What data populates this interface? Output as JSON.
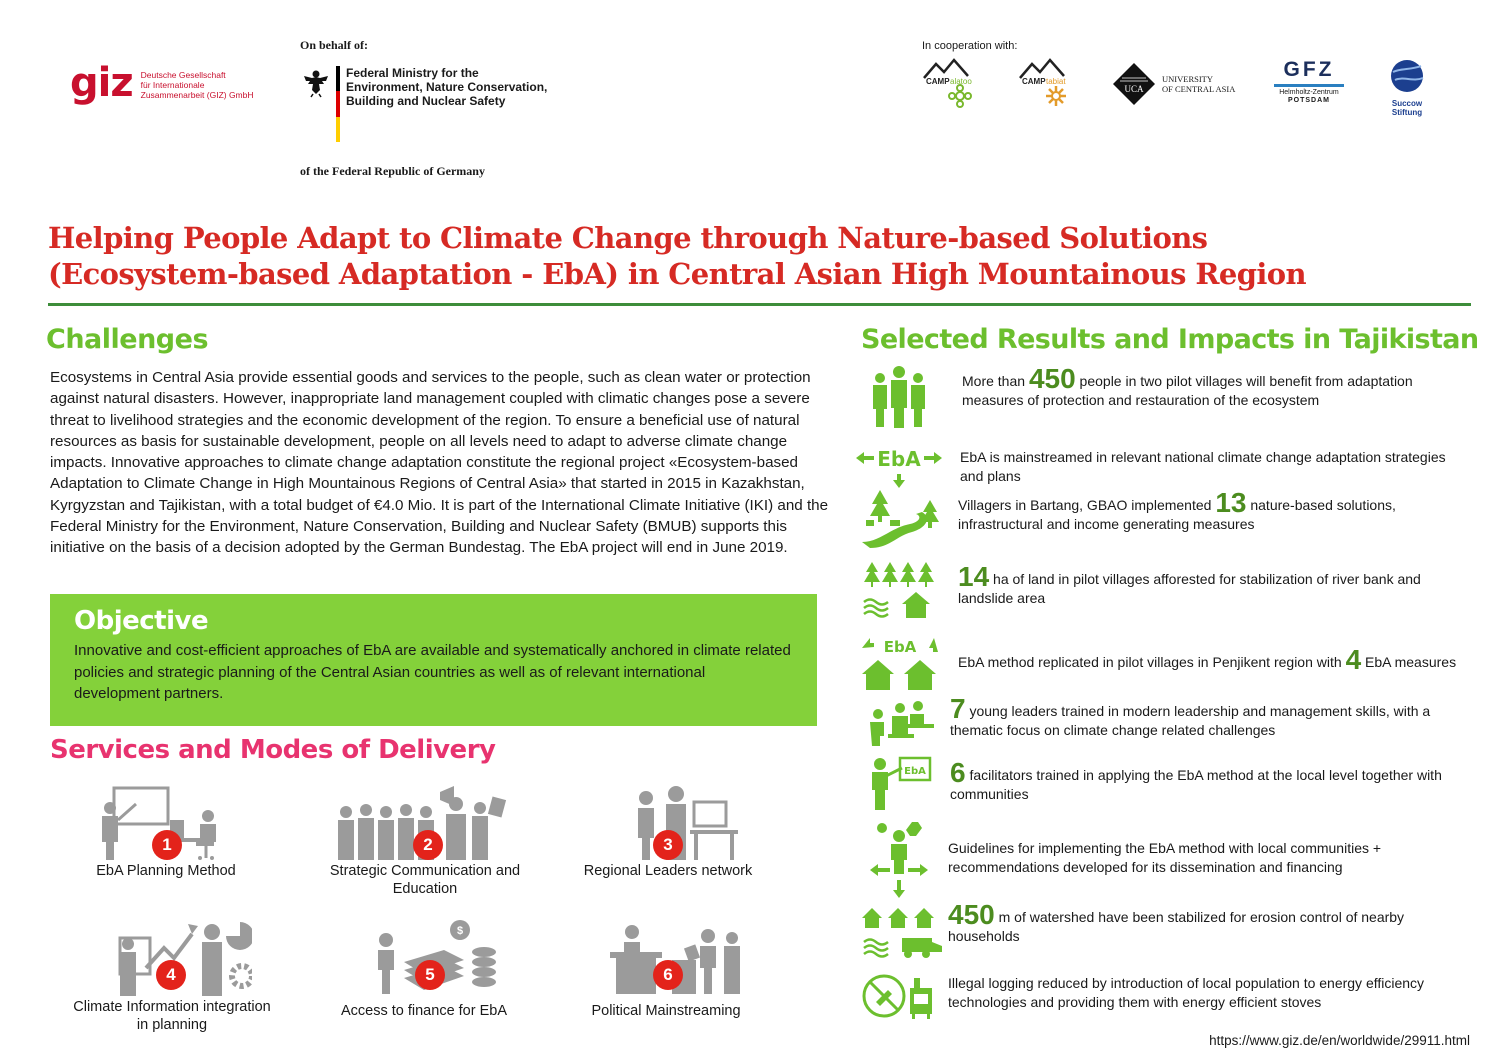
{
  "header": {
    "giz_logo_text": "giz",
    "giz_name_lines": [
      "Deutsche Gesellschaft",
      "für Internationale",
      "Zusammenarbeit (GIZ) GmbH"
    ],
    "on_behalf": "On behalf of:",
    "ministry_lines": [
      "Federal Ministry for the",
      "Environment, Nature Conservation,",
      "Building and Nuclear Safety"
    ],
    "republic": "of the Federal Republic of Germany",
    "cooperation": "In cooperation with:",
    "partners": {
      "camp_alatoo": "CAMPalatoo",
      "camp_tabiat": "CAMPtabiat",
      "uca_badge": "UCA",
      "uca_lines": [
        "UNIVERSITY",
        "OF CENTRAL ASIA"
      ],
      "gfz": "GFZ",
      "gfz_lines": [
        "Helmholtz-Zentrum",
        "POTSDAM"
      ],
      "succow_lines": [
        "Succow",
        "Stiftung"
      ]
    }
  },
  "title_lines": [
    "Helping People Adapt  to Climate Change through Nature-based Solutions",
    "(Ecosystem-based Adaptation - EbA) in Central Asian High Mountainous Region"
  ],
  "challenges": {
    "heading": "Challenges",
    "text": "Ecosystems in Central Asia provide essential goods and services to the people, such as clean water or protection against natural disasters. However, inappropriate land management coupled with climatic changes pose a severe threat to livelihood strategies and the economic development of the region. To ensure a beneficial use of natural resources as basis for sustainable development, people on all levels need to adapt to adverse climate change impacts. Innovative approaches to climate change adaptation constitute the regional project «Ecosystem-based Adaptation to Climate Change in High Mountainous Regions of Central Asia» that started in 2015 in Kazakhstan, Kyrgyzstan and Tajikistan, with a total budget of €4.0 Mio. It is part of the International Climate Initiative (IKI) and the Federal Ministry for the Environment, Nature Conservation, Building and Nuclear Safety (BMUB) supports this initiative on the basis of a decision adopted by the German Bundestag. The EbA project will end in June 2019."
  },
  "objective": {
    "heading": "Objective",
    "text": "Innovative and cost-efficient approaches of EbA are available and systematically anchored in climate related policies and strategic planning of the Central Asian countries as well as of relevant international development partners."
  },
  "services": {
    "heading": "Services and Modes of Delivery",
    "items": [
      {
        "number": "1",
        "label": "EbA Planning Method",
        "icon": "planning-presentation-icon"
      },
      {
        "number": "2",
        "label": "Strategic Communication and Education",
        "icon": "crowd-megaphone-icon"
      },
      {
        "number": "3",
        "label": "Regional Leaders network",
        "icon": "leaders-network-icon"
      },
      {
        "number": "4",
        "label": "Climate Information integration in planning",
        "icon": "climate-info-chart-icon"
      },
      {
        "number": "5",
        "label": "Access to finance for EbA",
        "icon": "finance-money-icon"
      },
      {
        "number": "6",
        "label": "Political Mainstreaming",
        "icon": "political-voting-icon"
      }
    ]
  },
  "results": {
    "heading": "Selected Results and Impacts in Tajikistan",
    "items": [
      {
        "icon": "people-group-icon",
        "pre": "More than ",
        "big": "450",
        "post": " people in two pilot villages will benefit from adaptation measures of protection and restauration of the ecosystem"
      },
      {
        "icon": "eba-arrows-icon",
        "icon_text": "EbA",
        "pre": "",
        "big": "",
        "post": "EbA is mainstreamed in relevant national climate change adaptation strategies and plans"
      },
      {
        "icon": "river-trees-icon",
        "pre": "Villagers in Bartang, GBAO implemented ",
        "big": "13",
        "post": " nature-based solutions, infrastructural and income generating measures"
      },
      {
        "icon": "forest-house-icon",
        "pre": "",
        "big": "14",
        "post": " ha of land in pilot villages afforested for stabilization of river bank and landslide area"
      },
      {
        "icon": "eba-houses-icon",
        "icon_text": "EbA",
        "pre": "EbA method replicated in pilot villages in Penjikent region with ",
        "big": "4",
        "post": " EbA measures"
      },
      {
        "icon": "young-leaders-icon",
        "pre": "",
        "big": "7",
        "post": " young leaders trained in modern leadership and management skills, with a thematic focus on climate change related challenges"
      },
      {
        "icon": "facilitator-board-icon",
        "icon_text": "EbA",
        "pre": "",
        "big": "6",
        "post": "  facilitators trained in applying the EbA method at the local level together with communities"
      },
      {
        "icon": "guidelines-person-icon",
        "pre": "",
        "big": "",
        "post": "Guidelines for implementing the EbA method with local communities + recommendations developed for its dissemination and financing"
      },
      {
        "icon": "watershed-houses-icon",
        "pre": "",
        "big": "450",
        "post": "  m of watershed have been stabilized for erosion control of nearby households"
      },
      {
        "icon": "no-logging-stove-icon",
        "pre": "",
        "big": "",
        "post": "Illegal logging reduced by introduction of local population to energy efficiency technologies and providing them with energy efficient stoves"
      }
    ]
  },
  "footer_url": "https://www.giz.de/en/worldwide/29911.html",
  "colors": {
    "title_red": "#d62a24",
    "green_heading": "#6cbf2e",
    "objective_bg": "#84d13a",
    "services_pink": "#e8336f",
    "icon_green": "#6cbf2e",
    "icon_grey": "#9b9b9b",
    "badge_red": "#e3231b"
  }
}
